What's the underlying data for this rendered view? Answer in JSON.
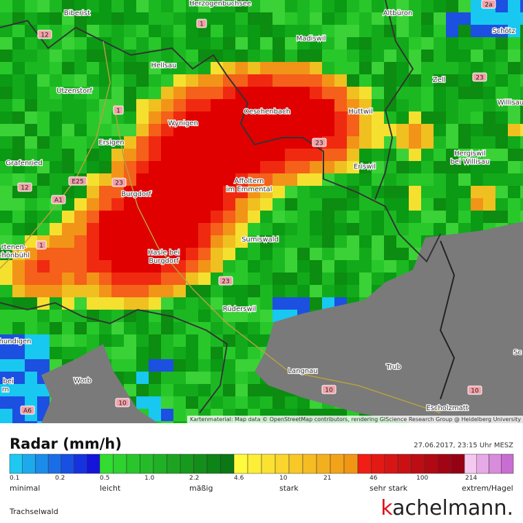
{
  "map": {
    "places": [
      "Biberist",
      "Herzogenbuchsee",
      "Altbüron",
      "Schötz",
      "Madiswil",
      "Hellsau",
      "Utzenstorf",
      "Zell",
      "Willisau",
      "Oeschenbach",
      "Huttwil",
      "Wynigen",
      "Ersigen",
      "Hergiswil",
      "bei Willisau",
      "Eriswil",
      "Grafenried",
      "Affoltern",
      "im Emmental",
      "Burgdorf",
      "Sumiswald",
      "rtenen-",
      "chönbühl",
      "Hasle bei",
      "Burgdorf",
      "Rüderswil",
      "hundigen",
      "Sc",
      "bei",
      "rn",
      "Worb",
      "Langnau",
      "Trub",
      "Escholzmatt"
    ],
    "roads": [
      "12",
      "1",
      "2a",
      "23",
      "1",
      "23",
      "E25",
      "23",
      "12",
      "A1",
      "1",
      "23",
      "10",
      "10",
      "10",
      "A6"
    ],
    "attribution": "Kartenmaterial: Map data © OpenStreetMap contributors, rendering GIScience Research Group @ Heidelberg University"
  },
  "legend": {
    "title": "Radar (mm/h)",
    "timestamp": "27.06.2017, 23:15 Uhr MESZ",
    "ticks": [
      "0.1",
      "0.2",
      "0.5",
      "1.0",
      "2.2",
      "4.6",
      "10",
      "21",
      "46",
      "100",
      "214"
    ],
    "categories": [
      "minimal",
      "leicht",
      "mäßig",
      "stark",
      "sehr stark",
      "extrem/Hagel"
    ]
  },
  "location": "Trachselwald",
  "brand": {
    "first": "k",
    "rest": "achelmann."
  }
}
